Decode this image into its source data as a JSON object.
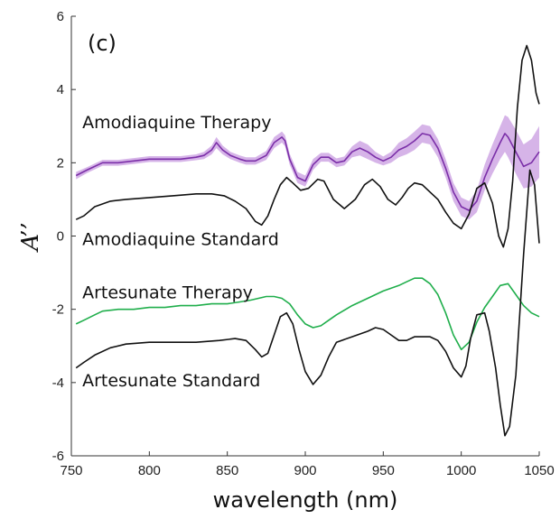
{
  "chart_data": {
    "type": "line",
    "panel_label": "(c)",
    "xlabel": "wavelength (nm)",
    "ylabel": "A’’",
    "xlim": [
      750,
      1050
    ],
    "ylim": [
      -6,
      6
    ],
    "xticks": [
      "750",
      "800",
      "850",
      "900",
      "950",
      "1000",
      "1050"
    ],
    "yticks": [
      "6",
      "4",
      "2",
      "0",
      "-2",
      "-4",
      "-6"
    ],
    "grid": false,
    "annotations": [
      {
        "text": "Amodiaquine Therapy",
        "x": 757,
        "y": 2.95
      },
      {
        "text": "Amodiaquine Standard",
        "x": 757,
        "y": -0.25
      },
      {
        "text": "Artesunate Therapy",
        "x": 757,
        "y": -1.7
      },
      {
        "text": "Artesunate Standard",
        "x": 757,
        "y": -4.1
      }
    ],
    "series": [
      {
        "key": "amodiaquine-therapy",
        "color": "#7b2fa8",
        "band_color": "#c89be0",
        "x": [
          753,
          760,
          770,
          780,
          790,
          800,
          810,
          820,
          830,
          835,
          840,
          843,
          847,
          852,
          858,
          862,
          868,
          875,
          880,
          885,
          887,
          890,
          895,
          900,
          905,
          910,
          915,
          920,
          925,
          930,
          935,
          940,
          945,
          950,
          955,
          960,
          965,
          970,
          975,
          980,
          985,
          990,
          995,
          1000,
          1005,
          1010,
          1015,
          1020,
          1025,
          1028,
          1030,
          1035,
          1040,
          1045,
          1050
        ],
        "y": [
          1.65,
          1.8,
          2.0,
          2.0,
          2.05,
          2.1,
          2.1,
          2.1,
          2.15,
          2.2,
          2.35,
          2.55,
          2.35,
          2.2,
          2.1,
          2.05,
          2.05,
          2.2,
          2.55,
          2.7,
          2.6,
          2.1,
          1.6,
          1.5,
          1.95,
          2.15,
          2.15,
          2.0,
          2.05,
          2.3,
          2.4,
          2.3,
          2.15,
          2.05,
          2.15,
          2.35,
          2.45,
          2.6,
          2.8,
          2.75,
          2.4,
          1.85,
          1.2,
          0.8,
          0.7,
          0.95,
          1.6,
          2.1,
          2.55,
          2.8,
          2.7,
          2.3,
          1.9,
          2.0,
          2.3
        ],
        "band": [
          0.1,
          0.08,
          0.08,
          0.08,
          0.08,
          0.08,
          0.08,
          0.08,
          0.08,
          0.1,
          0.12,
          0.15,
          0.12,
          0.1,
          0.1,
          0.1,
          0.1,
          0.12,
          0.15,
          0.15,
          0.15,
          0.15,
          0.15,
          0.15,
          0.15,
          0.12,
          0.12,
          0.12,
          0.12,
          0.15,
          0.2,
          0.2,
          0.15,
          0.12,
          0.15,
          0.2,
          0.22,
          0.25,
          0.25,
          0.25,
          0.25,
          0.25,
          0.25,
          0.25,
          0.25,
          0.3,
          0.35,
          0.4,
          0.45,
          0.5,
          0.55,
          0.6,
          0.6,
          0.65,
          0.7
        ]
      },
      {
        "key": "amodiaquine-standard",
        "color": "#111111",
        "x": [
          753,
          758,
          765,
          775,
          785,
          800,
          815,
          830,
          840,
          848,
          855,
          862,
          868,
          872,
          876,
          880,
          884,
          888,
          892,
          897,
          902,
          908,
          912,
          918,
          925,
          932,
          938,
          943,
          948,
          953,
          958,
          962,
          966,
          970,
          975,
          980,
          985,
          990,
          995,
          1000,
          1005,
          1010,
          1015,
          1020,
          1024,
          1027,
          1030,
          1033,
          1036,
          1039,
          1042,
          1045,
          1048,
          1050
        ],
        "y": [
          0.45,
          0.55,
          0.8,
          0.95,
          1.0,
          1.05,
          1.1,
          1.15,
          1.15,
          1.1,
          0.95,
          0.75,
          0.4,
          0.3,
          0.55,
          1.0,
          1.4,
          1.6,
          1.45,
          1.25,
          1.3,
          1.55,
          1.5,
          1.0,
          0.75,
          1.0,
          1.4,
          1.55,
          1.35,
          1.0,
          0.85,
          1.05,
          1.3,
          1.45,
          1.4,
          1.2,
          1.0,
          0.65,
          0.35,
          0.2,
          0.6,
          1.3,
          1.45,
          0.9,
          0.0,
          -0.3,
          0.2,
          1.5,
          3.5,
          4.8,
          5.2,
          4.8,
          3.9,
          3.6
        ]
      },
      {
        "key": "artesunate-therapy",
        "color": "#1fae4b",
        "band_color": "#a8e0b2",
        "x": [
          753,
          758,
          765,
          770,
          780,
          790,
          800,
          810,
          820,
          830,
          840,
          850,
          858,
          865,
          870,
          875,
          880,
          885,
          890,
          895,
          900,
          905,
          910,
          915,
          920,
          930,
          940,
          950,
          960,
          965,
          970,
          975,
          980,
          985,
          990,
          995,
          1000,
          1005,
          1010,
          1015,
          1020,
          1025,
          1030,
          1035,
          1040,
          1045,
          1050
        ],
        "y": [
          -2.4,
          -2.3,
          -2.15,
          -2.05,
          -2.0,
          -2.0,
          -1.95,
          -1.95,
          -1.9,
          -1.9,
          -1.85,
          -1.85,
          -1.8,
          -1.75,
          -1.7,
          -1.65,
          -1.65,
          -1.7,
          -1.85,
          -2.15,
          -2.4,
          -2.5,
          -2.45,
          -2.3,
          -2.15,
          -1.9,
          -1.7,
          -1.5,
          -1.35,
          -1.25,
          -1.15,
          -1.15,
          -1.3,
          -1.6,
          -2.1,
          -2.7,
          -3.1,
          -2.9,
          -2.35,
          -1.95,
          -1.65,
          -1.35,
          -1.3,
          -1.6,
          -1.9,
          -2.1,
          -2.2
        ]
      },
      {
        "key": "artesunate-standard",
        "color": "#111111",
        "x": [
          753,
          758,
          765,
          775,
          785,
          800,
          815,
          830,
          845,
          855,
          862,
          868,
          872,
          876,
          880,
          884,
          888,
          892,
          896,
          900,
          905,
          910,
          915,
          920,
          930,
          940,
          945,
          950,
          955,
          960,
          965,
          970,
          975,
          980,
          985,
          990,
          995,
          1000,
          1003,
          1006,
          1010,
          1015,
          1018,
          1022,
          1025,
          1028,
          1031,
          1035,
          1040,
          1044,
          1047,
          1050
        ],
        "y": [
          -3.6,
          -3.45,
          -3.25,
          -3.05,
          -2.95,
          -2.9,
          -2.9,
          -2.9,
          -2.85,
          -2.8,
          -2.85,
          -3.1,
          -3.3,
          -3.2,
          -2.7,
          -2.2,
          -2.1,
          -2.4,
          -3.1,
          -3.7,
          -4.05,
          -3.8,
          -3.3,
          -2.9,
          -2.75,
          -2.6,
          -2.5,
          -2.55,
          -2.7,
          -2.85,
          -2.85,
          -2.75,
          -2.75,
          -2.75,
          -2.85,
          -3.15,
          -3.6,
          -3.85,
          -3.55,
          -2.8,
          -2.15,
          -2.1,
          -2.6,
          -3.6,
          -4.6,
          -5.45,
          -5.2,
          -3.8,
          -0.5,
          1.8,
          1.4,
          -0.2
        ]
      }
    ]
  }
}
